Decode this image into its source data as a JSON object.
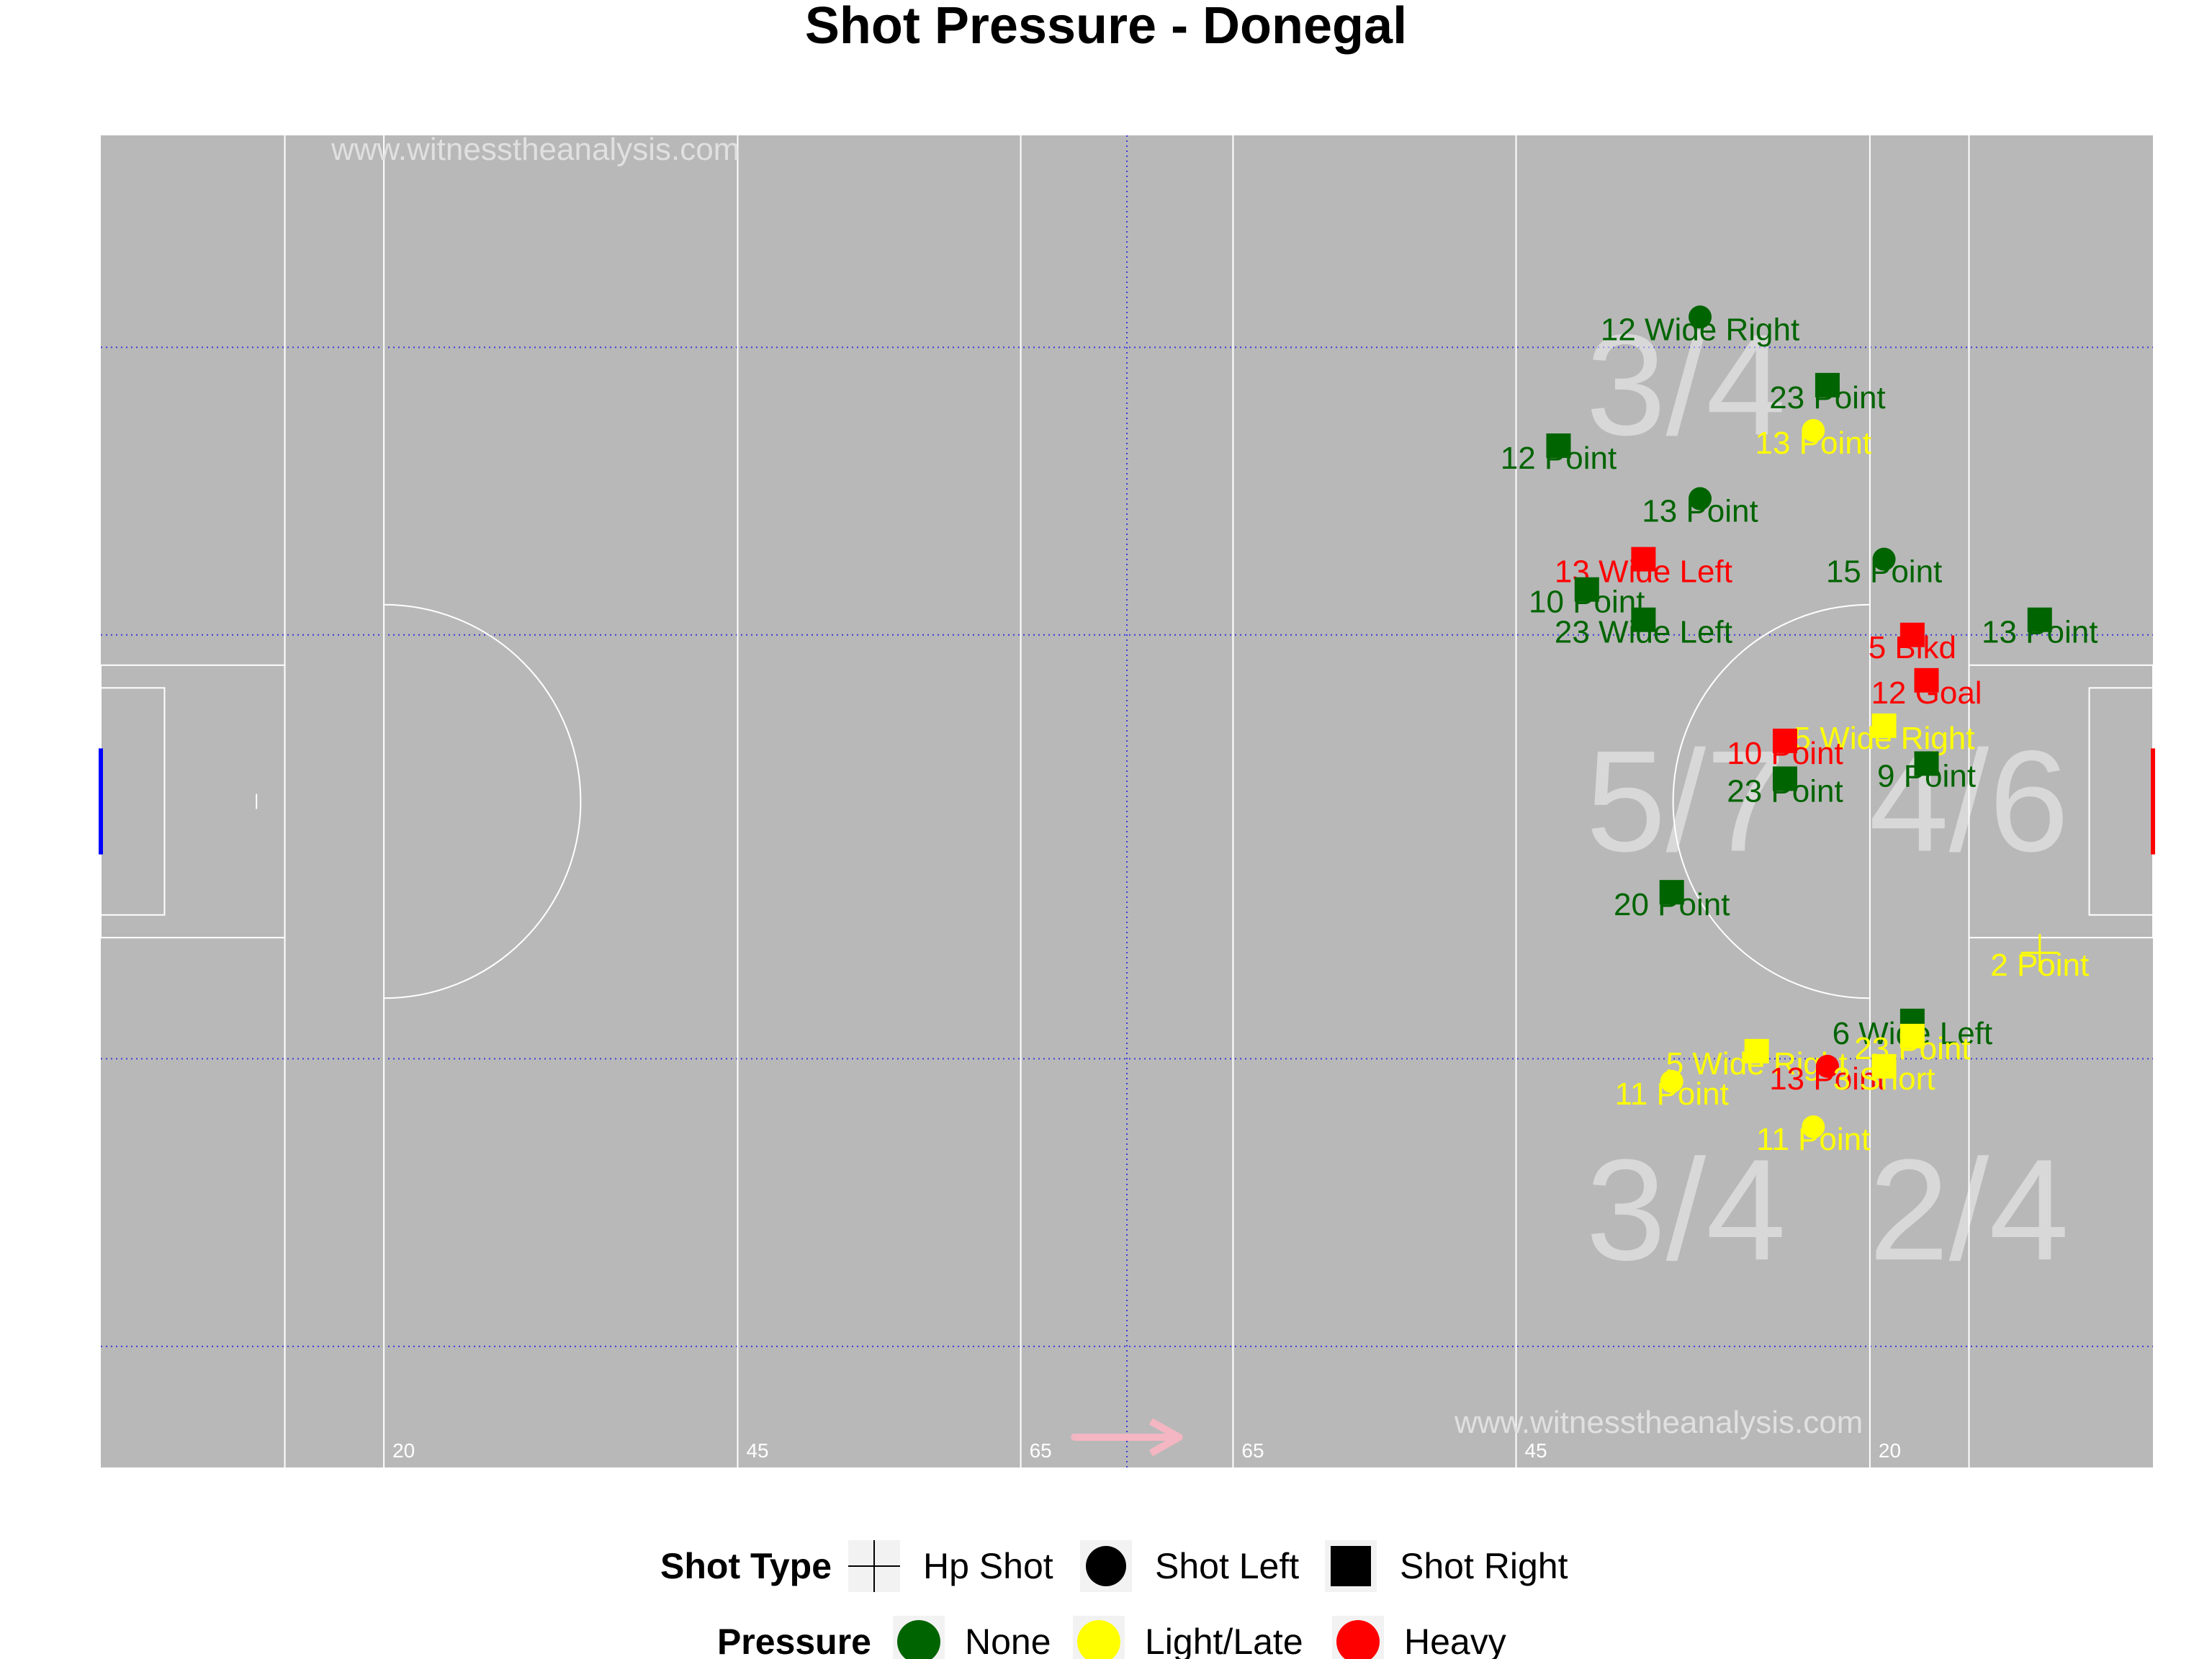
{
  "chart_data": {
    "type": "scatter",
    "title": "Shot Pressure - Donegal",
    "xlabel": "",
    "ylabel": "",
    "xlim": [
      0,
      145
    ],
    "ylim": [
      0,
      88
    ],
    "grid": false,
    "watermarks": [
      "www.witnesstheanalysis.com",
      "www.witnesstheanalysis.com"
    ],
    "distance_labels": [
      {
        "x": 20,
        "label": "20"
      },
      {
        "x": 45,
        "label": "45"
      },
      {
        "x": 65,
        "label": "65"
      },
      {
        "x": 80,
        "label": "65"
      },
      {
        "x": 100,
        "label": "45"
      },
      {
        "x": 125,
        "label": "20"
      }
    ],
    "zone_labels": [
      {
        "x": 112,
        "y": 71.5,
        "label": "3/4"
      },
      {
        "x": 112,
        "y": 44,
        "label": "5/7"
      },
      {
        "x": 132,
        "y": 44,
        "label": "4/6"
      },
      {
        "x": 112,
        "y": 17,
        "label": "3/4"
      },
      {
        "x": 132,
        "y": 17,
        "label": "2/4"
      }
    ],
    "legend": {
      "placement": "bottom",
      "shot_type": {
        "title": "Shot Type",
        "entries": [
          "Hp Shot",
          "Shot Left",
          "Shot Right"
        ]
      },
      "pressure": {
        "title": "Pressure",
        "entries": [
          "None",
          "Light/Late",
          "Heavy"
        ]
      }
    },
    "pressure_colors": {
      "None": "#006400",
      "Light/Late": "#ffff00",
      "Heavy": "#ff0000"
    },
    "shots": [
      {
        "x": 113,
        "y": 76,
        "shot": "Shot Left",
        "pressure": "None",
        "label": "12 Wide Right"
      },
      {
        "x": 122,
        "y": 71.5,
        "shot": "Shot Right",
        "pressure": "None",
        "label": "23 Point"
      },
      {
        "x": 121,
        "y": 68.5,
        "shot": "Shot Left",
        "pressure": "Light/Late",
        "label": "13 Point"
      },
      {
        "x": 103,
        "y": 67.5,
        "shot": "Shot Right",
        "pressure": "None",
        "label": "12 Point"
      },
      {
        "x": 113,
        "y": 64,
        "shot": "Shot Left",
        "pressure": "None",
        "label": "13 Point"
      },
      {
        "x": 109,
        "y": 60,
        "shot": "Shot Right",
        "pressure": "Heavy",
        "label": "13 Wide Left"
      },
      {
        "x": 126,
        "y": 60,
        "shot": "Shot Left",
        "pressure": "None",
        "label": "15 Point"
      },
      {
        "x": 105,
        "y": 58,
        "shot": "Shot Right",
        "pressure": "None",
        "label": "10 Point"
      },
      {
        "x": 109,
        "y": 56,
        "shot": "Shot Right",
        "pressure": "None",
        "label": "23 Wide Left"
      },
      {
        "x": 128,
        "y": 55,
        "shot": "Shot Right",
        "pressure": "Heavy",
        "label": "5 Blkd"
      },
      {
        "x": 137,
        "y": 56,
        "shot": "Shot Right",
        "pressure": "None",
        "label": "13 Point"
      },
      {
        "x": 129,
        "y": 52,
        "shot": "Shot Right",
        "pressure": "Heavy",
        "label": "12 Goal"
      },
      {
        "x": 126,
        "y": 49,
        "shot": "Shot Right",
        "pressure": "Light/Late",
        "label": "5 Wide Right"
      },
      {
        "x": 119,
        "y": 48,
        "shot": "Shot Right",
        "pressure": "Heavy",
        "label": "10 Point"
      },
      {
        "x": 129,
        "y": 46.5,
        "shot": "Shot Right",
        "pressure": "None",
        "label": "9 Point"
      },
      {
        "x": 119,
        "y": 45.5,
        "shot": "Shot Right",
        "pressure": "None",
        "label": "23 Point"
      },
      {
        "x": 111,
        "y": 38,
        "shot": "Shot Right",
        "pressure": "None",
        "label": "20 Point"
      },
      {
        "x": 137,
        "y": 34,
        "shot": "Hp Shot",
        "pressure": "Light/Late",
        "label": "2 Point"
      },
      {
        "x": 128,
        "y": 29.5,
        "shot": "Shot Right",
        "pressure": "None",
        "label": "6 Wide Left"
      },
      {
        "x": 128,
        "y": 28.5,
        "shot": "Shot Right",
        "pressure": "Light/Late",
        "label": "23 Point"
      },
      {
        "x": 117,
        "y": 27.5,
        "shot": "Shot Right",
        "pressure": "Light/Late",
        "label": "5 Wide Right"
      },
      {
        "x": 122,
        "y": 26.5,
        "shot": "Shot Left",
        "pressure": "Heavy",
        "label": "13 Point"
      },
      {
        "x": 126,
        "y": 26.5,
        "shot": "Shot Right",
        "pressure": "Light/Late",
        "label": "3 Short"
      },
      {
        "x": 111,
        "y": 25.5,
        "shot": "Shot Left",
        "pressure": "Light/Late",
        "label": "11 Point"
      },
      {
        "x": 121,
        "y": 22.5,
        "shot": "Shot Left",
        "pressure": "Light/Late",
        "label": "11 Point"
      }
    ]
  }
}
